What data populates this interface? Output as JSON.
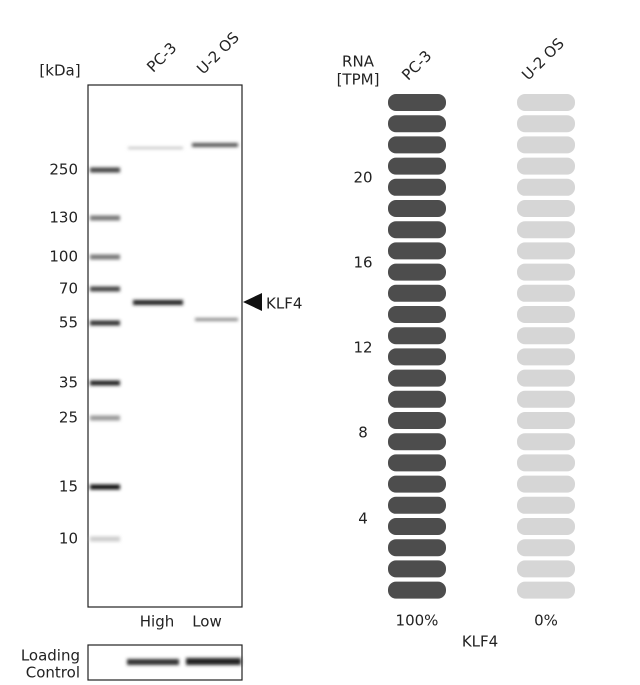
{
  "western_blot": {
    "unit_label": "[kDa]",
    "lanes": [
      "PC-3",
      "U-2 OS"
    ],
    "markers": [
      "250",
      "130",
      "100",
      "70",
      "55",
      "35",
      "25",
      "15",
      "10"
    ],
    "target": "KLF4",
    "lane_levels": [
      "High",
      "Low"
    ],
    "loading_control": [
      "Loading",
      "Control"
    ]
  },
  "rna": {
    "axis_label": [
      "RNA",
      "[TPM]"
    ],
    "lanes": [
      "PC-3",
      "U-2 OS"
    ],
    "ticks": [
      "20",
      "16",
      "12",
      "8",
      "4"
    ],
    "percentages": [
      "100%",
      "0%"
    ],
    "gene": "KLF4"
  }
}
